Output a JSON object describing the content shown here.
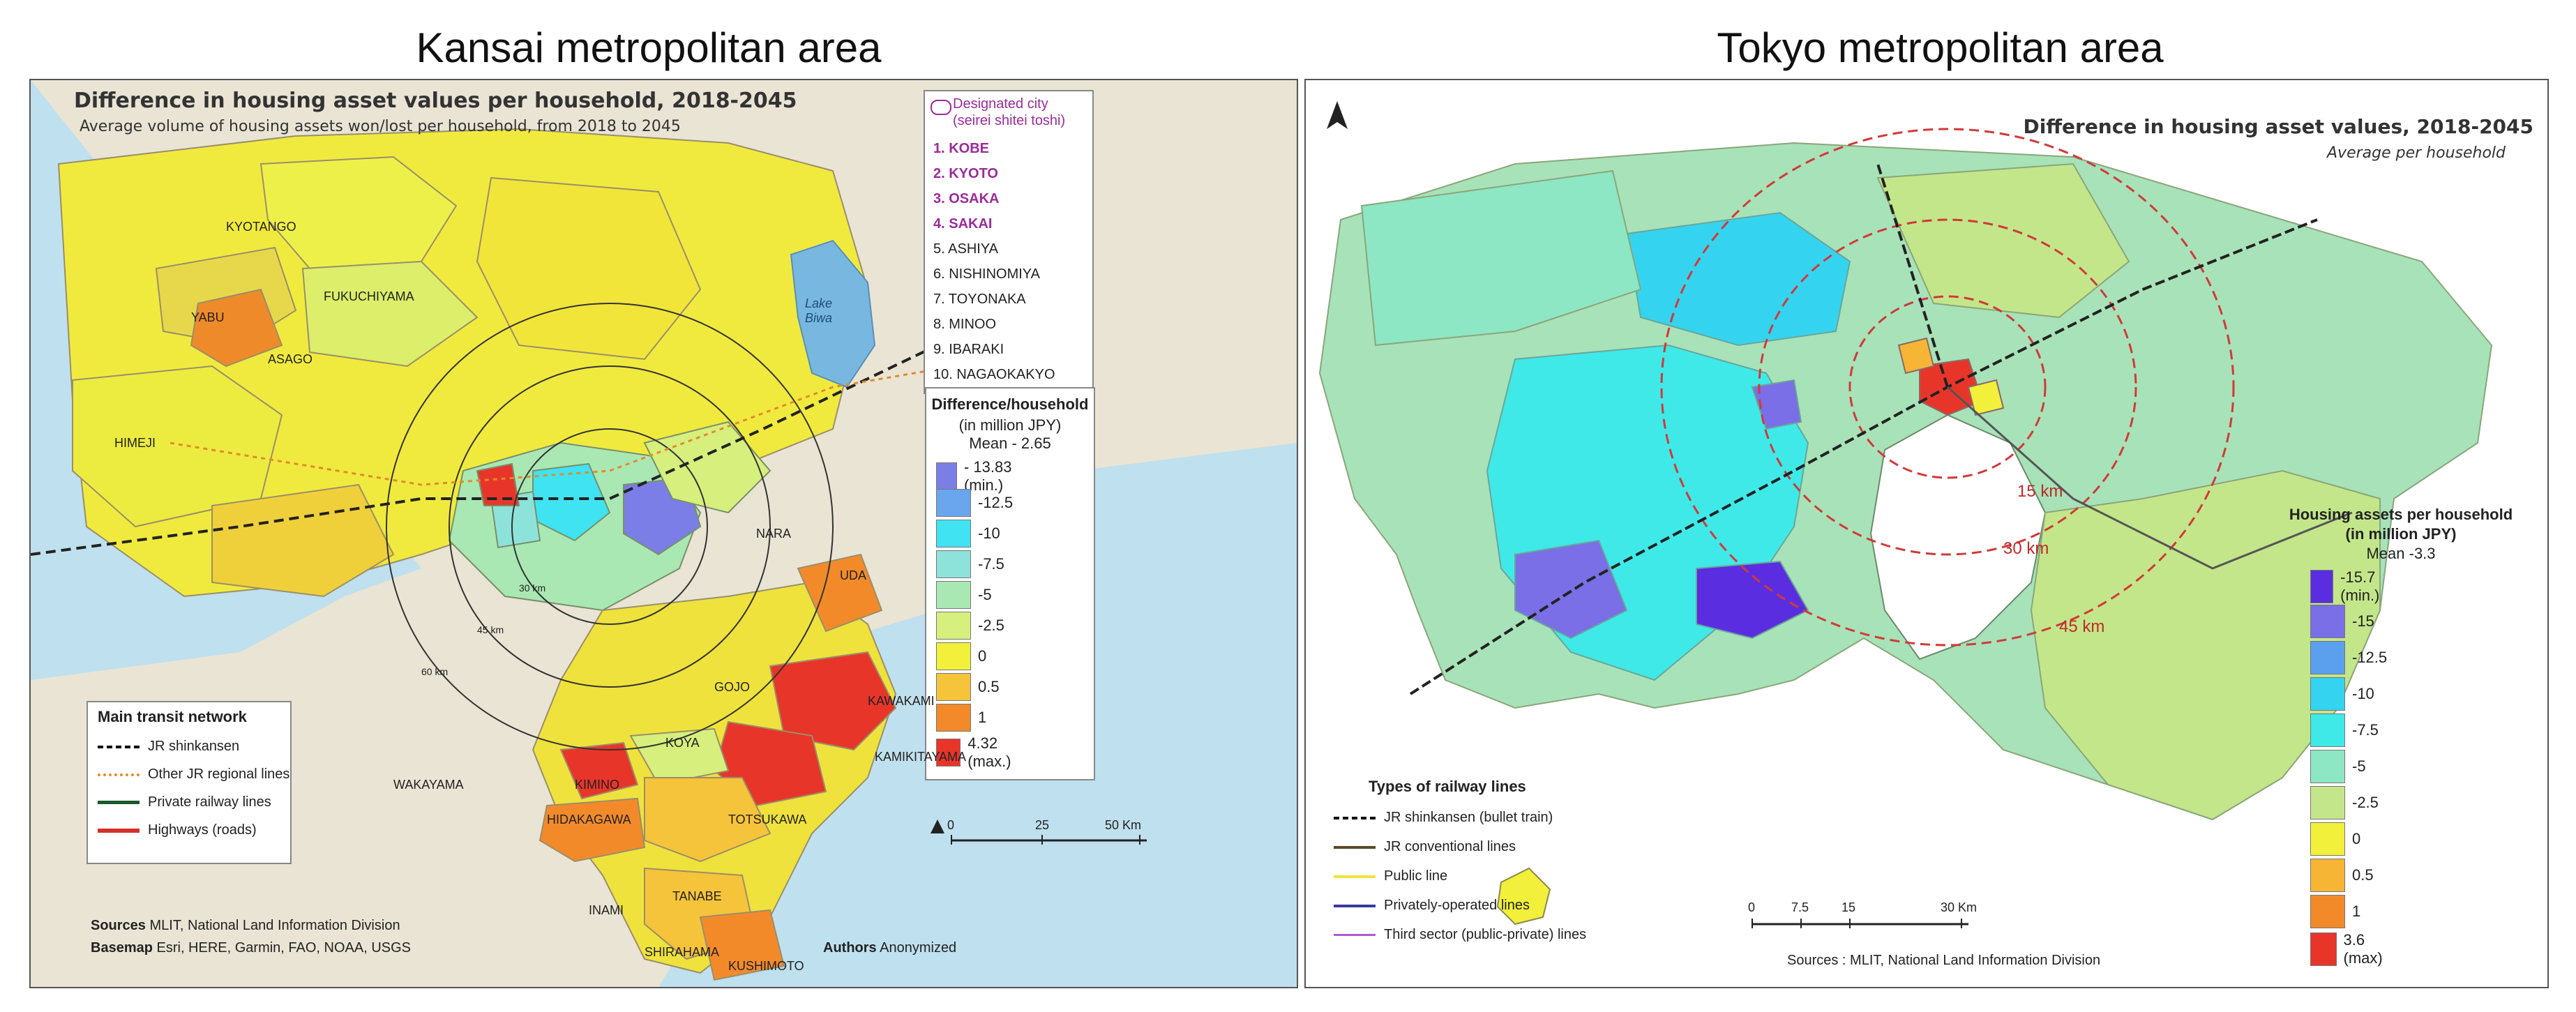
{
  "left": {
    "panel_title": "Kansai metropolitan area",
    "map_title": "Difference in housing asset values per household, 2018-2045",
    "map_subtitle": "Average volume of housing assets won/lost per household, from 2018 to 2045",
    "cities_box": {
      "title": "Designated city (seirei shitei toshi)",
      "designated": [
        "1. KOBE",
        "2. KYOTO",
        "3. OSAKA",
        "4. SAKAI"
      ],
      "others": [
        "5. ASHIYA",
        "6. NISHINOMIYA",
        "7. TOYONAKA",
        "8. MINOO",
        "9. IBARAKI",
        "10. NAGAOKAKYO"
      ]
    },
    "place_labels": [
      "KYOTANGO",
      "YABU",
      "FUKUCHIYAMA",
      "ASAGO",
      "HIMEJI",
      "NARA",
      "UDA",
      "GOJO",
      "KAWAKAMI",
      "KAMIKITAYAMA",
      "KOYA",
      "KIMINO",
      "WAKAYAMA",
      "HIDAKAGAWA",
      "TOTSUKAWA",
      "INAMI",
      "TANABE",
      "SHIRAHAMA",
      "KUSHIMOTO"
    ],
    "lake_label": "Lake Biwa",
    "ring_labels": [
      "30 km",
      "45 km",
      "60 km"
    ],
    "legend": {
      "title": "Difference/household",
      "unit": "(in million JPY)",
      "mean": "Mean - 2.65",
      "items": [
        {
          "label": "- 13.83 (min.)",
          "color": "#7a7ee6"
        },
        {
          "label": "-12.5",
          "color": "#6aa6ee"
        },
        {
          "label": "-10",
          "color": "#3fe3f2"
        },
        {
          "label": "-7.5",
          "color": "#8de3d9"
        },
        {
          "label": "-5",
          "color": "#a9e8b3"
        },
        {
          "label": "-2.5",
          "color": "#d6ef7d"
        },
        {
          "label": "0",
          "color": "#f2f03a"
        },
        {
          "label": "0.5",
          "color": "#f6c43a"
        },
        {
          "label": "1",
          "color": "#f38a2a"
        },
        {
          "label": "4.32 (max.)",
          "color": "#e8352a"
        }
      ]
    },
    "transit": {
      "title": "Main transit network",
      "items": [
        "JR shinkansen",
        "Other JR regional lines",
        "Private railway lines",
        "Highways (roads)"
      ]
    },
    "scale": [
      "0",
      "25",
      "50 Km"
    ],
    "sources_label": "Sources",
    "sources_text": "MLIT, National Land Information Division",
    "basemap_label": "Basemap",
    "basemap_text": "Esri, HERE, Garmin, FAO, NOAA, USGS",
    "authors_label": "Authors",
    "authors_text": "Anonymized"
  },
  "right": {
    "panel_title": "Tokyo metropolitan area",
    "map_title": "Difference in housing asset values, 2018-2045",
    "map_subtitle": "Average per household",
    "ring_labels": [
      "15 km",
      "30 km",
      "45 km"
    ],
    "legend": {
      "title": "Housing assets per household",
      "unit": "(in million JPY)",
      "mean": "Mean -3.3",
      "items": [
        {
          "label": "-15.7 (min.)",
          "color": "#5b2de0"
        },
        {
          "label": "-15",
          "color": "#7a6fe6"
        },
        {
          "label": "-12.5",
          "color": "#5aa0ee"
        },
        {
          "label": "-10",
          "color": "#34d4f0"
        },
        {
          "label": "-7.5",
          "color": "#3fe9e8"
        },
        {
          "label": "-5",
          "color": "#8de6c4"
        },
        {
          "label": "-2.5",
          "color": "#c4e68a"
        },
        {
          "label": "0",
          "color": "#f2f03a"
        },
        {
          "label": "0.5",
          "color": "#f7b536"
        },
        {
          "label": "1",
          "color": "#f38a2a"
        },
        {
          "label": "3.6 (max)",
          "color": "#e8352a"
        }
      ]
    },
    "railway": {
      "title": "Types of railway lines",
      "items": [
        "JR shinkansen (bullet train)",
        "JR conventional lines",
        "Public line",
        "Privately-operated lines",
        "Third sector (public-private) lines"
      ]
    },
    "scale": [
      "0",
      "7.5",
      "15",
      "30 Km"
    ],
    "sources_text": "Sources : MLIT, National Land Information Division"
  }
}
